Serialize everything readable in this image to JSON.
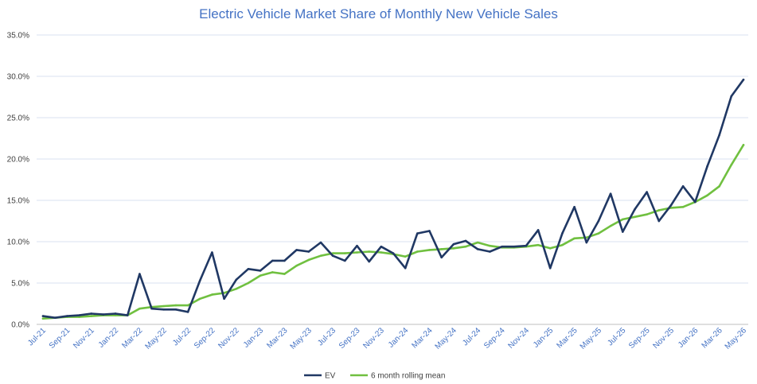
{
  "chart_data": {
    "type": "line",
    "title": "Electric Vehicle Market Share of Monthly New Vehicle  Sales",
    "xlabel": "",
    "ylabel": "",
    "ylim": [
      0,
      35
    ],
    "y_tick_labels": [
      "0.0%",
      "5.0%",
      "10.0%",
      "15.0%",
      "20.0%",
      "25.0%",
      "30.0%",
      "35.0%"
    ],
    "y_tick_values": [
      0,
      5,
      10,
      15,
      20,
      25,
      30,
      35
    ],
    "x_tick_labels": [
      "Jul-21",
      "Sep-21",
      "Nov-21",
      "Jan-22",
      "Mar-22",
      "May-22",
      "Jul-22",
      "Sep-22",
      "Nov-22",
      "Jan-23",
      "Mar-23",
      "May-23",
      "Jul-23",
      "Sep-23",
      "Nov-23",
      "Jan-24",
      "Mar-24",
      "May-24",
      "Jul-24",
      "Sep-24",
      "Nov-24",
      "Jan-25",
      "Mar-25",
      "May-25",
      "Jul-25",
      "Sep-25",
      "Nov-25",
      "Jan-26",
      "Mar-26",
      "May-26"
    ],
    "categories": [
      "Jul-21",
      "Aug-21",
      "Sep-21",
      "Oct-21",
      "Nov-21",
      "Dec-21",
      "Jan-22",
      "Feb-22",
      "Mar-22",
      "Apr-22",
      "May-22",
      "Jun-22",
      "Jul-22",
      "Aug-22",
      "Sep-22",
      "Oct-22",
      "Nov-22",
      "Dec-22",
      "Jan-23",
      "Feb-23",
      "Mar-23",
      "Apr-23",
      "May-23",
      "Jun-23",
      "Jul-23",
      "Aug-23",
      "Sep-23",
      "Oct-23",
      "Nov-23",
      "Dec-23",
      "Jan-24",
      "Feb-24",
      "Mar-24",
      "Apr-24",
      "May-24",
      "Jun-24",
      "Jul-24",
      "Aug-24",
      "Sep-24",
      "Oct-24",
      "Nov-24",
      "Dec-24",
      "Jan-25",
      "Feb-25",
      "Mar-25",
      "Apr-25",
      "May-25",
      "Jun-25",
      "Jul-25",
      "Aug-25",
      "Sep-25",
      "Oct-25",
      "Nov-25",
      "Dec-25",
      "Jan-26",
      "Feb-26",
      "Mar-26",
      "Apr-26",
      "May-26"
    ],
    "grid": "horizontal",
    "legend_position": "bottom",
    "series": [
      {
        "name": "EV",
        "color": "#203864",
        "values": [
          1.0,
          0.8,
          1.0,
          1.1,
          1.3,
          1.2,
          1.3,
          1.1,
          6.1,
          1.9,
          1.8,
          1.8,
          1.5,
          5.3,
          8.7,
          3.1,
          5.4,
          6.7,
          6.5,
          7.7,
          7.7,
          9.0,
          8.8,
          9.9,
          8.3,
          7.7,
          9.5,
          7.6,
          9.4,
          8.6,
          6.8,
          11.0,
          11.3,
          8.1,
          9.7,
          10.1,
          9.1,
          8.8,
          9.4,
          9.4,
          9.5,
          11.4,
          6.8,
          11.0,
          14.2,
          9.9,
          12.5,
          15.8,
          11.2,
          13.9,
          16.0,
          12.5,
          14.4,
          16.7,
          14.8,
          19.1,
          22.9,
          27.6,
          29.6
        ]
      },
      {
        "name": "6 month rolling mean",
        "color": "#70c040",
        "values": [
          0.7,
          0.8,
          0.9,
          0.9,
          1.0,
          1.1,
          1.1,
          1.1,
          1.9,
          2.1,
          2.2,
          2.3,
          2.3,
          3.1,
          3.6,
          3.8,
          4.3,
          5.0,
          5.9,
          6.3,
          6.1,
          7.1,
          7.8,
          8.3,
          8.6,
          8.6,
          8.7,
          8.8,
          8.7,
          8.5,
          8.2,
          8.8,
          9.0,
          9.1,
          9.2,
          9.4,
          9.9,
          9.5,
          9.3,
          9.3,
          9.4,
          9.6,
          9.2,
          9.6,
          10.4,
          10.5,
          11.0,
          11.9,
          12.7,
          13.0,
          13.3,
          13.8,
          14.1,
          14.2,
          14.8,
          15.6,
          16.7,
          19.3,
          21.7
        ]
      }
    ]
  }
}
